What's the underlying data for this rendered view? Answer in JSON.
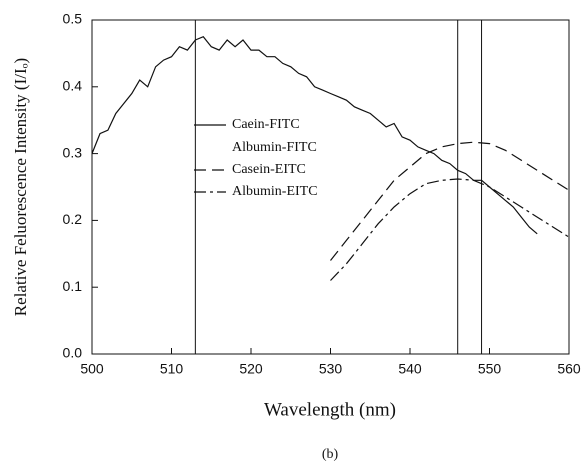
{
  "chart_data": {
    "type": "line",
    "xlabel": "Wavelength (nm)",
    "ylabel": "Relative Feluorescence Intensity (I/Iₒ)",
    "caption": "(b)",
    "xlim": [
      500,
      560
    ],
    "xticks": [
      500,
      510,
      520,
      530,
      540,
      550,
      560
    ],
    "ylim": [
      0,
      0.5
    ],
    "yticks": [
      {
        "value": 0,
        "label": "0.0"
      },
      0.1,
      0.2,
      0.3,
      0.4,
      0.5
    ],
    "vlines": [
      513,
      546,
      549
    ],
    "series": [
      {
        "name": "Caein-FITC",
        "color": "#111111",
        "style": "solid",
        "x": [
          500,
          501,
          502,
          503,
          504,
          505,
          506,
          507,
          508,
          509,
          510,
          511,
          512,
          513,
          514,
          515,
          516,
          517,
          518,
          519,
          520,
          521,
          522,
          523,
          524,
          525,
          526,
          527,
          528,
          529,
          530,
          531,
          532,
          533,
          534,
          535,
          536,
          537,
          538,
          539,
          540,
          541,
          542,
          543,
          544,
          545,
          546,
          547,
          548,
          549,
          550,
          551,
          552,
          553,
          554,
          555,
          556
        ],
        "values": [
          0.3,
          0.33,
          0.335,
          0.36,
          0.375,
          0.39,
          0.41,
          0.4,
          0.43,
          0.44,
          0.445,
          0.46,
          0.455,
          0.47,
          0.475,
          0.46,
          0.455,
          0.47,
          0.46,
          0.47,
          0.455,
          0.455,
          0.445,
          0.445,
          0.435,
          0.43,
          0.42,
          0.415,
          0.4,
          0.395,
          0.39,
          0.385,
          0.38,
          0.37,
          0.365,
          0.36,
          0.35,
          0.34,
          0.345,
          0.325,
          0.32,
          0.31,
          0.305,
          0.3,
          0.29,
          0.285,
          0.275,
          0.27,
          0.26,
          0.26,
          0.25,
          0.24,
          0.23,
          0.22,
          0.205,
          0.19,
          0.18
        ]
      },
      {
        "name": "Albumin-FITC",
        "color": "#111111",
        "style": "solid",
        "x": [
          500
        ],
        "values": [
          null
        ]
      },
      {
        "name": "Casein-EITC",
        "color": "#111111",
        "style": "dashed",
        "x": [
          530,
          532,
          534,
          536,
          538,
          540,
          542,
          544,
          546,
          548,
          550,
          552,
          554,
          556,
          558,
          560
        ],
        "values": [
          0.14,
          0.17,
          0.2,
          0.23,
          0.26,
          0.28,
          0.3,
          0.31,
          0.315,
          0.317,
          0.315,
          0.305,
          0.29,
          0.275,
          0.26,
          0.245
        ]
      },
      {
        "name": "Albumin-EITC",
        "color": "#111111",
        "style": "dashdot",
        "x": [
          530,
          532,
          534,
          536,
          538,
          540,
          542,
          544,
          546,
          548,
          550,
          552,
          554,
          556,
          558,
          560
        ],
        "values": [
          0.11,
          0.135,
          0.165,
          0.195,
          0.22,
          0.24,
          0.255,
          0.26,
          0.262,
          0.26,
          0.25,
          0.235,
          0.22,
          0.205,
          0.19,
          0.175
        ]
      }
    ]
  }
}
